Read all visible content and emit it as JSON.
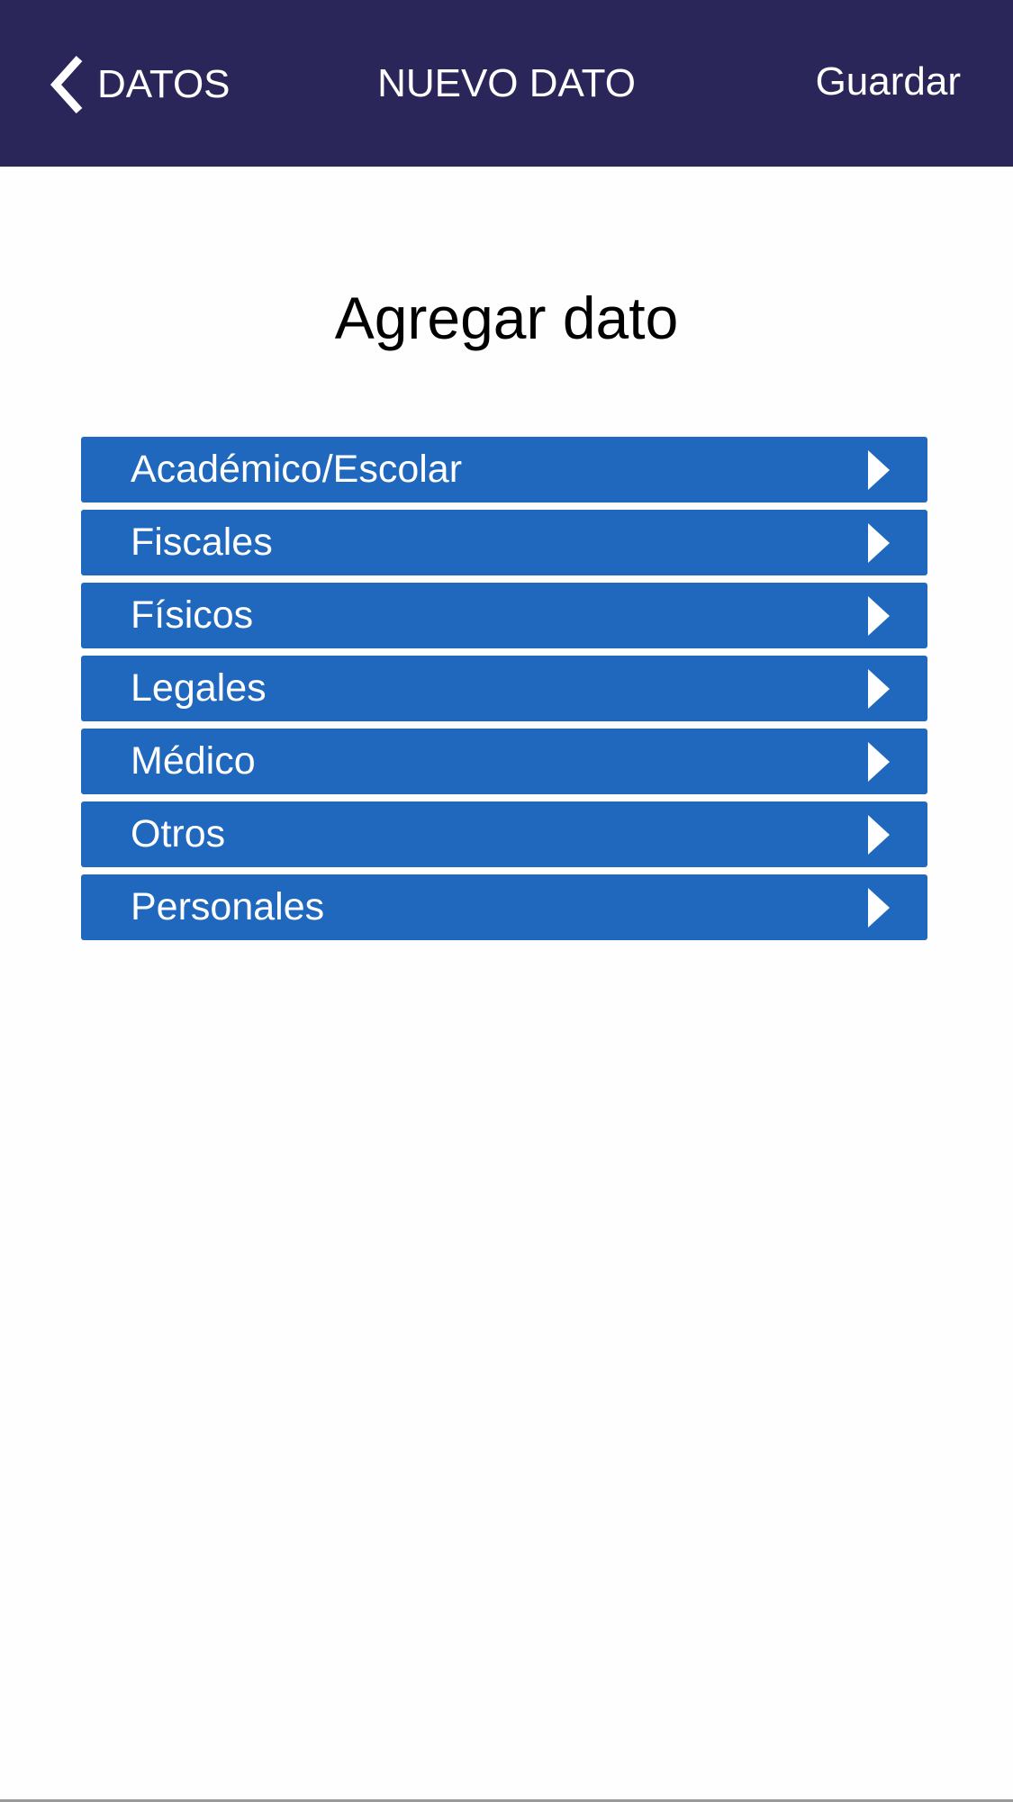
{
  "header": {
    "back_label": "DATOS",
    "title": "NUEVO DATO",
    "save_label": "Guardar"
  },
  "main": {
    "heading": "Agregar dato",
    "categories": [
      {
        "label": "Académico/Escolar"
      },
      {
        "label": "Fiscales"
      },
      {
        "label": "Físicos"
      },
      {
        "label": "Legales"
      },
      {
        "label": "Médico"
      },
      {
        "label": "Otros"
      },
      {
        "label": "Personales"
      }
    ]
  },
  "colors": {
    "header_bg": "#2b2659",
    "row_bg": "#1f68be",
    "text_on_dark": "#ffffff"
  },
  "icons": {
    "back": "chevron-left-icon",
    "row": "chevron-right-icon"
  }
}
